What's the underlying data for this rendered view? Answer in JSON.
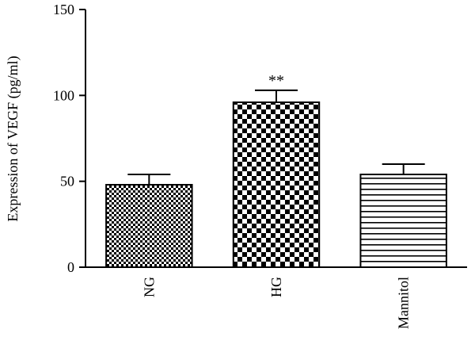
{
  "chart_data": {
    "type": "bar",
    "title": "",
    "xlabel": "",
    "ylabel": "Expression of VEGF (pg/ml)",
    "ylim": [
      0,
      150
    ],
    "yticks": [
      0,
      50,
      100,
      150
    ],
    "categories": [
      "NG",
      "HG",
      "Mannitol"
    ],
    "values": [
      48,
      96,
      54
    ],
    "errors": [
      6,
      7,
      6
    ],
    "significance": [
      "",
      "**",
      ""
    ],
    "patterns": [
      "fine-checker",
      "coarse-checker",
      "horizontal-lines"
    ],
    "grid": false,
    "legend": "none"
  }
}
